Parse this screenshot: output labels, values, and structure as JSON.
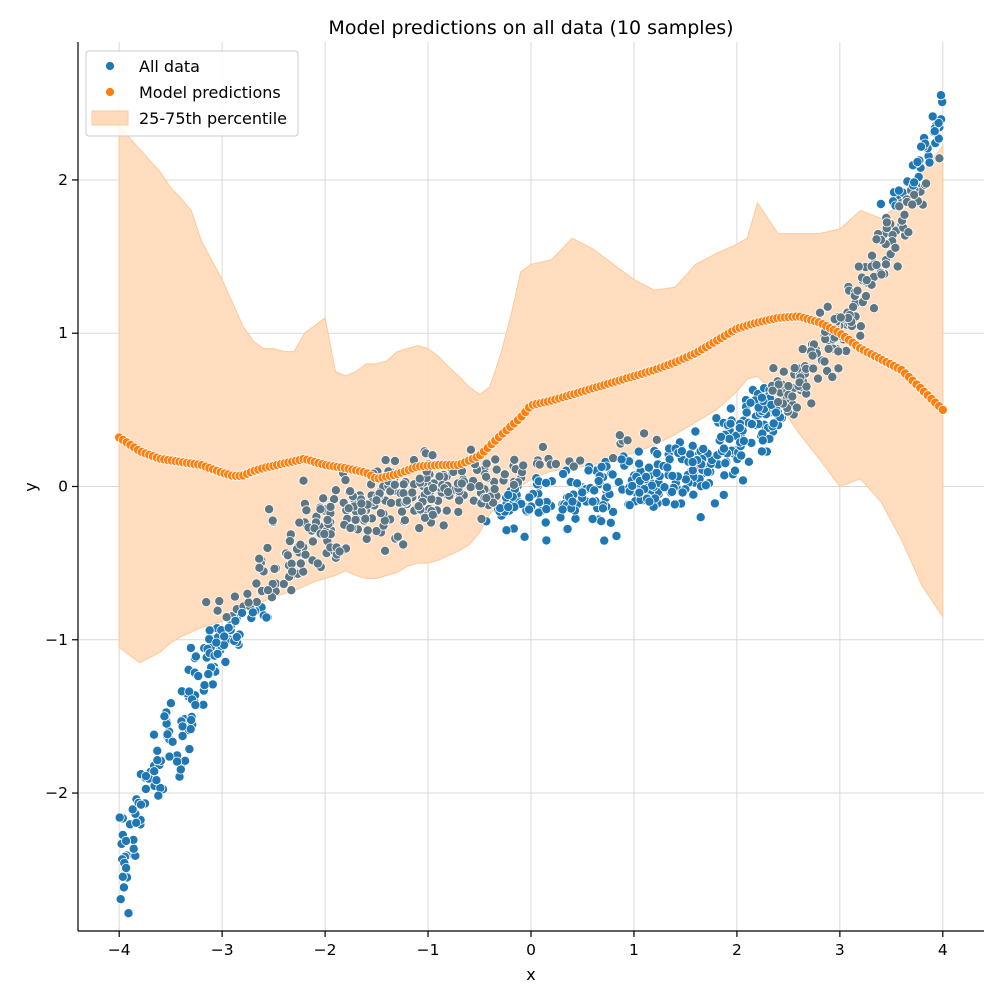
{
  "chart_data": {
    "type": "scatter",
    "title": "Model predictions on all data (10 samples)",
    "xlabel": "x",
    "ylabel": "y",
    "xlim": [
      -4.4,
      4.4
    ],
    "ylim": [
      -2.9,
      2.9
    ],
    "xticks": [
      -4,
      -3,
      -2,
      -1,
      0,
      1,
      2,
      3,
      4
    ],
    "yticks": [
      -2,
      -1,
      0,
      1,
      2
    ],
    "xtick_labels": [
      "−4",
      "−3",
      "−2",
      "−1",
      "0",
      "1",
      "2",
      "3",
      "4"
    ],
    "ytick_labels": [
      "−2",
      "−1",
      "0",
      "1",
      "2"
    ],
    "grid": true,
    "legend_position": "top-left",
    "colors": {
      "all_data": "#1f77b4",
      "predictions": "#ff7f0e",
      "band_fill": "#ffdbbb",
      "band_edge": "#ffc898"
    },
    "legend": [
      {
        "label": "All data",
        "kind": "dot",
        "color": "#1f77b4"
      },
      {
        "label": "Model predictions",
        "kind": "dot",
        "color": "#ff7f0e"
      },
      {
        "label": "25-75th percentile",
        "kind": "patch",
        "color": "#ffdbbb"
      }
    ],
    "all_data_trend": {
      "x": [
        -4.0,
        -3.8,
        -3.6,
        -3.4,
        -3.2,
        -3.0,
        -2.8,
        -2.6,
        -2.4,
        -2.2,
        -2.0,
        -1.8,
        -1.6,
        -1.4,
        -1.2,
        -1.0,
        -0.8,
        -0.6,
        -0.4,
        -0.2,
        0.0,
        0.2,
        0.4,
        0.6,
        0.8,
        1.0,
        1.2,
        1.4,
        1.6,
        1.8,
        2.0,
        2.2,
        2.4,
        2.6,
        2.8,
        3.0,
        3.2,
        3.4,
        3.6,
        3.8,
        4.0
      ],
      "y": [
        -2.5,
        -2.1,
        -1.8,
        -1.55,
        -1.25,
        -1.0,
        -0.85,
        -0.65,
        -0.5,
        -0.38,
        -0.3,
        -0.22,
        -0.15,
        -0.1,
        -0.08,
        -0.05,
        -0.03,
        -0.02,
        -0.03,
        -0.05,
        -0.03,
        -0.05,
        -0.06,
        -0.05,
        0.02,
        0.05,
        0.07,
        0.1,
        0.13,
        0.18,
        0.28,
        0.45,
        0.55,
        0.65,
        0.85,
        1.05,
        1.25,
        1.5,
        1.8,
        2.1,
        2.45
      ],
      "spread": [
        0.12,
        0.15,
        0.17,
        0.17,
        0.15,
        0.12,
        0.12,
        0.14,
        0.16,
        0.16,
        0.14,
        0.14,
        0.14,
        0.13,
        0.12,
        0.12,
        0.12,
        0.12,
        0.12,
        0.12,
        0.12,
        0.12,
        0.12,
        0.12,
        0.12,
        0.12,
        0.12,
        0.12,
        0.12,
        0.12,
        0.12,
        0.12,
        0.1,
        0.1,
        0.1,
        0.1,
        0.12,
        0.12,
        0.12,
        0.12,
        0.12
      ],
      "n_points": 1000
    },
    "predictions": {
      "x": [
        -4.0,
        -3.8,
        -3.6,
        -3.4,
        -3.2,
        -3.0,
        -2.9,
        -2.8,
        -2.7,
        -2.6,
        -2.4,
        -2.2,
        -2.0,
        -1.8,
        -1.6,
        -1.5,
        -1.3,
        -1.1,
        -0.9,
        -0.7,
        -0.5,
        -0.3,
        -0.1,
        0.0,
        0.2,
        0.4,
        0.6,
        0.8,
        1.0,
        1.2,
        1.4,
        1.6,
        1.8,
        2.0,
        2.2,
        2.4,
        2.6,
        2.8,
        3.0,
        3.2,
        3.4,
        3.6,
        3.8,
        4.0
      ],
      "y": [
        0.32,
        0.23,
        0.18,
        0.16,
        0.14,
        0.09,
        0.07,
        0.07,
        0.1,
        0.12,
        0.15,
        0.18,
        0.14,
        0.12,
        0.09,
        0.05,
        0.08,
        0.13,
        0.14,
        0.14,
        0.2,
        0.33,
        0.45,
        0.53,
        0.56,
        0.6,
        0.64,
        0.68,
        0.72,
        0.76,
        0.81,
        0.87,
        0.95,
        1.03,
        1.07,
        1.1,
        1.11,
        1.07,
        1.0,
        0.9,
        0.83,
        0.76,
        0.63,
        0.5
      ],
      "n_points": 220
    },
    "band": {
      "x": [
        -4.0,
        -3.8,
        -3.6,
        -3.5,
        -3.4,
        -3.3,
        -3.2,
        -3.0,
        -2.9,
        -2.8,
        -2.7,
        -2.6,
        -2.5,
        -2.4,
        -2.3,
        -2.2,
        -2.1,
        -2.0,
        -1.9,
        -1.8,
        -1.7,
        -1.6,
        -1.5,
        -1.4,
        -1.3,
        -1.2,
        -1.1,
        -1.0,
        -0.9,
        -0.8,
        -0.7,
        -0.6,
        -0.5,
        -0.4,
        -0.3,
        -0.2,
        -0.1,
        0.0,
        0.2,
        0.4,
        0.6,
        0.8,
        1.0,
        1.2,
        1.4,
        1.6,
        1.8,
        2.0,
        2.1,
        2.2,
        2.3,
        2.4,
        2.5,
        2.6,
        2.8,
        3.0,
        3.2,
        3.4,
        3.6,
        3.8,
        4.0
      ],
      "upper": [
        2.35,
        2.2,
        2.05,
        1.95,
        1.88,
        1.8,
        1.6,
        1.35,
        1.2,
        1.05,
        0.95,
        0.9,
        0.9,
        0.88,
        0.88,
        1.0,
        1.05,
        1.1,
        0.75,
        0.72,
        0.75,
        0.8,
        0.8,
        0.82,
        0.88,
        0.9,
        0.92,
        0.9,
        0.85,
        0.78,
        0.72,
        0.65,
        0.6,
        0.65,
        0.85,
        1.1,
        1.4,
        1.45,
        1.48,
        1.62,
        1.55,
        1.45,
        1.35,
        1.28,
        1.3,
        1.45,
        1.52,
        1.58,
        1.62,
        1.85,
        1.75,
        1.65,
        1.65,
        1.65,
        1.65,
        1.68,
        1.8,
        1.75,
        1.85,
        2.05,
        2.22
      ],
      "lower": [
        -1.05,
        -1.15,
        -1.08,
        -1.02,
        -0.98,
        -0.95,
        -0.92,
        -0.88,
        -0.85,
        -0.82,
        -0.78,
        -0.75,
        -0.72,
        -0.7,
        -0.68,
        -0.65,
        -0.62,
        -0.6,
        -0.58,
        -0.55,
        -0.58,
        -0.6,
        -0.6,
        -0.58,
        -0.56,
        -0.52,
        -0.5,
        -0.5,
        -0.48,
        -0.45,
        -0.42,
        -0.38,
        -0.3,
        -0.18,
        -0.1,
        -0.02,
        0.0,
        0.05,
        0.1,
        0.12,
        0.14,
        0.18,
        0.22,
        0.27,
        0.34,
        0.42,
        0.5,
        0.62,
        0.7,
        0.72,
        0.65,
        0.55,
        0.45,
        0.35,
        0.18,
        0.0,
        0.05,
        -0.1,
        -0.35,
        -0.65,
        -0.85
      ]
    }
  }
}
